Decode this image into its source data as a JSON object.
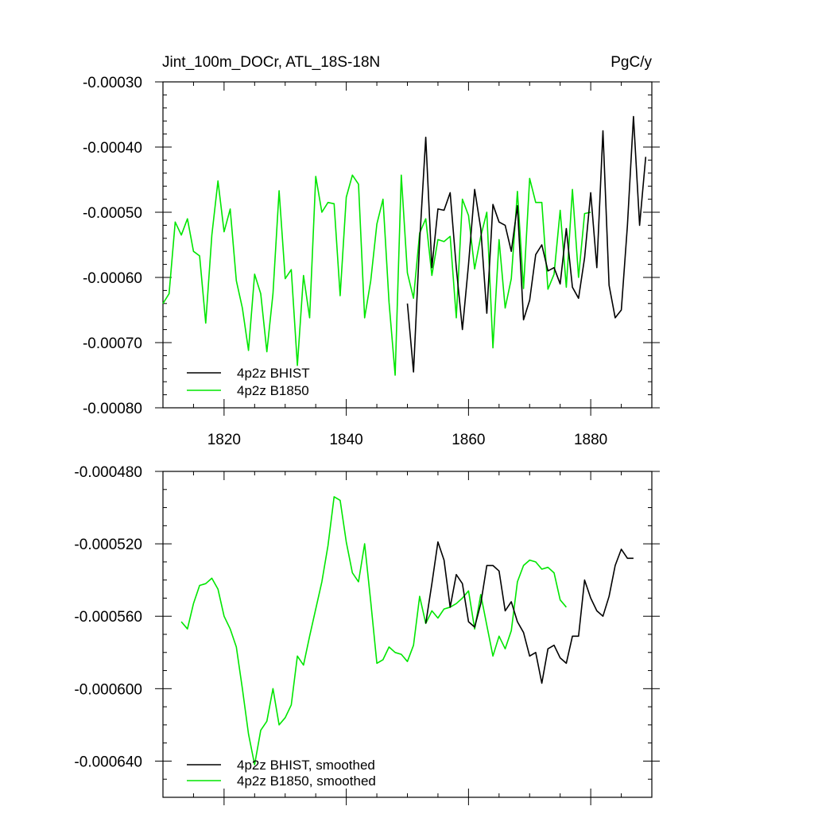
{
  "chart_data": [
    {
      "type": "line",
      "title": "Jint_100m_DOCr, ATL_18S-18N",
      "units": "PgC/y",
      "xlabel": "",
      "ylabel": "",
      "xlim": [
        1810,
        1890
      ],
      "ylim": [
        -0.0008,
        -0.0003
      ],
      "x_ticks": [
        1820,
        1840,
        1860,
        1880
      ],
      "x_tick_labels": [
        "1820",
        "1840",
        "1860",
        "1880"
      ],
      "y_ticks": [
        -0.0003,
        -0.0004,
        -0.0005,
        -0.0006,
        -0.0007,
        -0.0008
      ],
      "y_tick_labels": [
        "-0.00030",
        "-0.00040",
        "-0.00050",
        "-0.00060",
        "-0.00070",
        "-0.00080"
      ],
      "grid": false,
      "legend_position": "bottom-left",
      "series": [
        {
          "name": "4p2z BHIST",
          "color": "#000000",
          "x": [
            1850,
            1851,
            1852,
            1853,
            1854,
            1855,
            1856,
            1857,
            1858,
            1859,
            1860,
            1861,
            1862,
            1863,
            1864,
            1865,
            1866,
            1867,
            1868,
            1869,
            1870,
            1871,
            1872,
            1873,
            1874,
            1875,
            1876,
            1877,
            1878,
            1879,
            1880,
            1881,
            1882,
            1883,
            1884,
            1885,
            1886,
            1887,
            1888,
            1889
          ],
          "y": [
            -0.00064,
            -0.000745,
            -0.000545,
            -0.000385,
            -0.000585,
            -0.000495,
            -0.000497,
            -0.00047,
            -0.000585,
            -0.00068,
            -0.00058,
            -0.000465,
            -0.000525,
            -0.000655,
            -0.000488,
            -0.000515,
            -0.00052,
            -0.00056,
            -0.00049,
            -0.000665,
            -0.000635,
            -0.000565,
            -0.00055,
            -0.00059,
            -0.000585,
            -0.00061,
            -0.000525,
            -0.000615,
            -0.000632,
            -0.00057,
            -0.00047,
            -0.000585,
            -0.000375,
            -0.000612,
            -0.000662,
            -0.00065,
            -0.00052,
            -0.000353,
            -0.00052,
            -0.000415
          ]
        },
        {
          "name": "4p2z B1850",
          "color": "#00e600",
          "x": [
            1810,
            1811,
            1812,
            1813,
            1814,
            1815,
            1816,
            1817,
            1818,
            1819,
            1820,
            1821,
            1822,
            1823,
            1824,
            1825,
            1826,
            1827,
            1828,
            1829,
            1830,
            1831,
            1832,
            1833,
            1834,
            1835,
            1836,
            1837,
            1838,
            1839,
            1840,
            1841,
            1842,
            1843,
            1844,
            1845,
            1846,
            1847,
            1848,
            1849,
            1850,
            1851,
            1852,
            1853,
            1854,
            1855,
            1856,
            1857,
            1858,
            1859,
            1860,
            1861,
            1862,
            1863,
            1864,
            1865,
            1866,
            1867,
            1868,
            1869,
            1870,
            1871,
            1872,
            1873,
            1874,
            1875,
            1876,
            1877,
            1878,
            1879,
            1880
          ],
          "y": [
            -0.00064,
            -0.000625,
            -0.000515,
            -0.000535,
            -0.00051,
            -0.00056,
            -0.000567,
            -0.00067,
            -0.000535,
            -0.000452,
            -0.00053,
            -0.000495,
            -0.000605,
            -0.000647,
            -0.000712,
            -0.000595,
            -0.000625,
            -0.000714,
            -0.000625,
            -0.000467,
            -0.000602,
            -0.000588,
            -0.000735,
            -0.000597,
            -0.000662,
            -0.000445,
            -0.0005,
            -0.000485,
            -0.000487,
            -0.000628,
            -0.000477,
            -0.000443,
            -0.000457,
            -0.000662,
            -0.000605,
            -0.000518,
            -0.00048,
            -0.000638,
            -0.00075,
            -0.000443,
            -0.000593,
            -0.000632,
            -0.000532,
            -0.00051,
            -0.000597,
            -0.000542,
            -0.000545,
            -0.000537,
            -0.000662,
            -0.00048,
            -0.000505,
            -0.000587,
            -0.000537,
            -0.0005,
            -0.000708,
            -0.000542,
            -0.000647,
            -0.000602,
            -0.000468,
            -0.000617,
            -0.000448,
            -0.000485,
            -0.000485,
            -0.000618,
            -0.000595,
            -0.000497,
            -0.000615,
            -0.000465,
            -0.0006,
            -0.000502,
            -0.0005
          ]
        }
      ]
    },
    {
      "type": "line",
      "title": "",
      "xlabel": "",
      "ylabel": "",
      "xlim": [
        1810,
        1890
      ],
      "ylim": [
        -0.00066,
        -0.00048
      ],
      "x_ticks": [
        1820,
        1840,
        1860,
        1880
      ],
      "x_tick_labels": [],
      "y_ticks": [
        -0.00048,
        -0.00052,
        -0.00056,
        -0.0006,
        -0.00064
      ],
      "y_tick_labels": [
        "-0.000480",
        "-0.000520",
        "-0.000560",
        "-0.000600",
        "-0.000640"
      ],
      "grid": false,
      "legend_position": "bottom-left",
      "series": [
        {
          "name": "4p2z BHIST, smoothed",
          "color": "#000000",
          "x": [
            1853,
            1854,
            1855,
            1856,
            1857,
            1858,
            1859,
            1860,
            1861,
            1862,
            1863,
            1864,
            1865,
            1866,
            1867,
            1868,
            1869,
            1870,
            1871,
            1872,
            1873,
            1874,
            1875,
            1876,
            1877,
            1878,
            1879,
            1880,
            1881,
            1882,
            1883,
            1884,
            1885,
            1886,
            1887
          ],
          "y": [
            -0.000564,
            -0.000542,
            -0.000519,
            -0.000529,
            -0.000555,
            -0.000537,
            -0.000542,
            -0.000563,
            -0.000566,
            -0.000553,
            -0.000532,
            -0.000532,
            -0.000535,
            -0.000557,
            -0.000552,
            -0.000563,
            -0.000569,
            -0.000582,
            -0.00058,
            -0.000597,
            -0.000578,
            -0.000576,
            -0.000583,
            -0.000586,
            -0.000571,
            -0.000571,
            -0.00054,
            -0.00055,
            -0.000557,
            -0.00056,
            -0.000549,
            -0.000532,
            -0.000523,
            -0.000528,
            -0.000528
          ]
        },
        {
          "name": "4p2z B1850, smoothed",
          "color": "#00e600",
          "x": [
            1813,
            1814,
            1815,
            1816,
            1817,
            1818,
            1819,
            1820,
            1821,
            1822,
            1823,
            1824,
            1825,
            1826,
            1827,
            1828,
            1829,
            1830,
            1831,
            1832,
            1833,
            1834,
            1835,
            1836,
            1837,
            1838,
            1839,
            1840,
            1841,
            1842,
            1843,
            1844,
            1845,
            1846,
            1847,
            1848,
            1849,
            1850,
            1851,
            1852,
            1853,
            1854,
            1855,
            1856,
            1857,
            1858,
            1859,
            1860,
            1861,
            1862,
            1863,
            1864,
            1865,
            1866,
            1867,
            1868,
            1869,
            1870,
            1871,
            1872,
            1873,
            1874,
            1875,
            1876
          ],
          "y": [
            -0.000563,
            -0.000567,
            -0.000553,
            -0.000543,
            -0.000542,
            -0.000539,
            -0.000545,
            -0.00056,
            -0.000567,
            -0.000577,
            -0.0006,
            -0.000625,
            -0.000642,
            -0.000623,
            -0.000618,
            -0.0006,
            -0.00062,
            -0.000616,
            -0.000609,
            -0.000582,
            -0.000587,
            -0.000571,
            -0.000556,
            -0.000541,
            -0.000521,
            -0.000494,
            -0.000496,
            -0.000519,
            -0.000536,
            -0.000541,
            -0.00052,
            -0.000552,
            -0.000586,
            -0.000584,
            -0.000577,
            -0.00058,
            -0.000581,
            -0.000585,
            -0.000576,
            -0.000549,
            -0.000564,
            -0.000557,
            -0.000561,
            -0.000556,
            -0.000555,
            -0.000553,
            -0.00055,
            -0.000546,
            -0.000567,
            -0.000548,
            -0.000565,
            -0.000582,
            -0.000571,
            -0.000578,
            -0.000568,
            -0.000541,
            -0.000532,
            -0.000529,
            -0.00053,
            -0.000534,
            -0.000533,
            -0.000536,
            -0.000551,
            -0.000555
          ]
        }
      ]
    }
  ]
}
